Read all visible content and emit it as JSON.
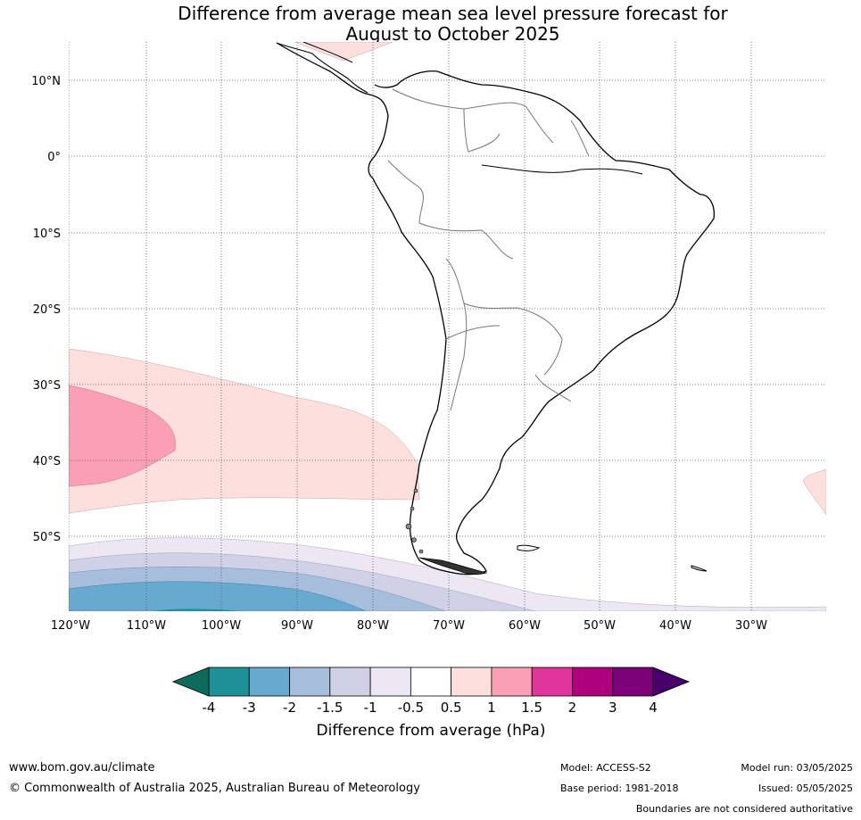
{
  "title_line1": "Difference from average mean sea level pressure forecast for",
  "title_line2": "August to October 2025",
  "lat_labels": [
    "10°N",
    "0°",
    "10°S",
    "20°S",
    "30°S",
    "40°S",
    "50°S"
  ],
  "lon_labels": [
    "120°W",
    "110°W",
    "100°W",
    "90°W",
    "80°W",
    "70°W",
    "60°W",
    "50°W",
    "40°W",
    "30°W"
  ],
  "colorbar": {
    "title": "Difference from average (hPa)",
    "tick_labels": [
      "-4",
      "-3",
      "-2",
      "-1.5",
      "-1",
      "-0.5",
      "0.5",
      "1",
      "1.5",
      "2",
      "3",
      "4"
    ],
    "colors": [
      "#1e9098",
      "#67a9cf",
      "#a6bddb",
      "#d0d1e6",
      "#ece7f2",
      "#ffffff",
      "#fde0dd",
      "#fa9fb5",
      "#e0359a",
      "#ae017e",
      "#7a0177"
    ],
    "under_color": "#0c6b5b",
    "over_color": "#49006a"
  },
  "footer": {
    "url": "www.bom.gov.au/climate",
    "copyright": "© Commonwealth of Australia 2025, Australian Bureau of Meteorology",
    "model": "Model: ACCESS-S2",
    "base_period": "Base period: 1981-2018",
    "model_run": "Model run: 03/05/2025",
    "issued": "Issued: 05/05/2025",
    "boundaries": "Boundaries are not considered authoritative"
  }
}
